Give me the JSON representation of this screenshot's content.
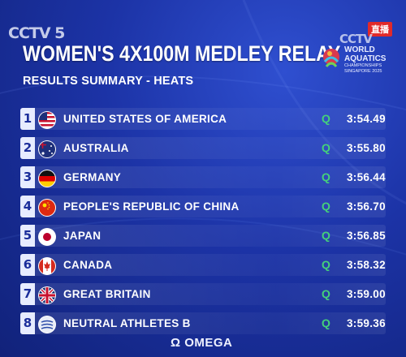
{
  "broadcast": {
    "channel_logo": "CCTV 5",
    "live_badge": "直播",
    "channel_logo_right": "CCTV"
  },
  "header": {
    "title": "WOMEN'S 4X100M MEDLEY RELAY",
    "subtitle": "RESULTS SUMMARY - HEATS"
  },
  "event_logo": {
    "line1": "WORLD",
    "line2": "AQUATICS",
    "line3": "CHAMPIONSHIPS",
    "line4": "SINGAPORE 2025"
  },
  "colors": {
    "background": "#1c33a6",
    "rank_badge": "#e7ecff",
    "qualified": "#44d17a",
    "live_badge": "#e12a2a"
  },
  "results": [
    {
      "rank": "1",
      "team": "UNITED STATES OF AMERICA",
      "flag": "usa-flag-icon",
      "q": "Q",
      "time": "3:54.49"
    },
    {
      "rank": "2",
      "team": "AUSTRALIA",
      "flag": "australia-flag-icon",
      "q": "Q",
      "time": "3:55.80"
    },
    {
      "rank": "3",
      "team": "GERMANY",
      "flag": "germany-flag-icon",
      "q": "Q",
      "time": "3:56.44"
    },
    {
      "rank": "4",
      "team": "PEOPLE'S REPUBLIC OF CHINA",
      "flag": "china-flag-icon",
      "q": "Q",
      "time": "3:56.70"
    },
    {
      "rank": "5",
      "team": "JAPAN",
      "flag": "japan-flag-icon",
      "q": "Q",
      "time": "3:56.85"
    },
    {
      "rank": "6",
      "team": "CANADA",
      "flag": "canada-flag-icon",
      "q": "Q",
      "time": "3:58.32"
    },
    {
      "rank": "7",
      "team": "GREAT BRITAIN",
      "flag": "great-britain-flag-icon",
      "q": "Q",
      "time": "3:59.00"
    },
    {
      "rank": "8",
      "team": "NEUTRAL ATHLETES B",
      "flag": "neutral-athletes-flag-icon",
      "q": "Q",
      "time": "3:59.36"
    }
  ],
  "footer": {
    "sponsor": "Ω OMEGA"
  }
}
